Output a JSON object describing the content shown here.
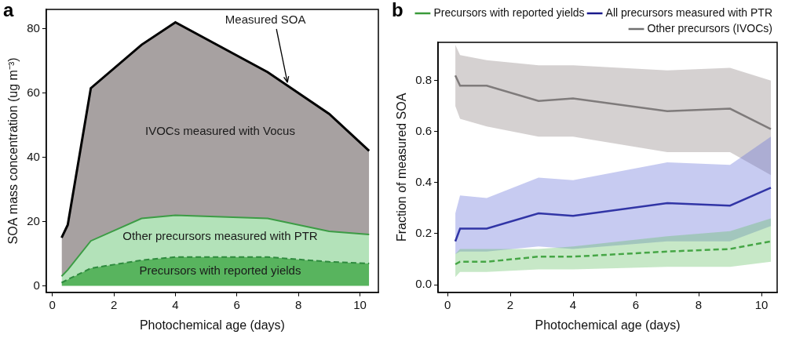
{
  "chart_data": [
    {
      "type": "area",
      "title": "a",
      "stacked": true,
      "grid": false,
      "x_label": "Photochemical age (days)",
      "y_label": "SOA mass concentration (ug m⁻³)",
      "annotations": [
        "Measured SOA"
      ],
      "x": [
        0.3,
        0.5,
        1.25,
        2.9,
        4.0,
        7.0,
        9.0,
        10.3
      ],
      "xlim": [
        -0.2,
        10.6
      ],
      "xticks": [
        0,
        2,
        4,
        6,
        8,
        10
      ],
      "ylim": [
        -2,
        86
      ],
      "yticks": [
        0,
        20,
        40,
        60,
        80
      ],
      "series": [
        {
          "name": "Precursors with reported yields",
          "color": "#2e8b3e",
          "line_style": "dashed",
          "values": [
            1,
            2,
            5.5,
            8,
            9,
            9,
            7.5,
            7
          ]
        },
        {
          "name": "Other precursors measured with PTR",
          "color": "#3c9c45",
          "line_style": "solid",
          "values": [
            2,
            3,
            8.5,
            13,
            13,
            12,
            9.5,
            9
          ]
        },
        {
          "name": "IVOCs measured with Vocus",
          "color": "#000000",
          "line_style": "solid",
          "values": [
            12,
            14,
            47.5,
            54,
            60,
            45.5,
            36.5,
            26
          ]
        }
      ]
    },
    {
      "type": "line",
      "title": "b",
      "grid": false,
      "legend": "top",
      "x_label": "Photochemical age (days)",
      "y_label": "Fraction of measured SOA",
      "x": [
        0.25,
        0.4,
        1.25,
        2.9,
        4.0,
        7.0,
        9.0,
        10.3
      ],
      "xlim": [
        -0.3,
        10.5
      ],
      "xticks": [
        0,
        2,
        4,
        6,
        8,
        10
      ],
      "ylim": [
        -0.03,
        0.95
      ],
      "yticks": [
        {
          "value": 0,
          "label": "0.0"
        },
        0.2,
        0.4,
        0.6,
        0.8
      ],
      "series": [
        {
          "name": "Precursors with reported yields",
          "color": "#3a9a3a",
          "line_style": "dashed",
          "values": [
            0.08,
            0.09,
            0.09,
            0.11,
            0.11,
            0.13,
            0.14,
            0.17
          ],
          "lower": [
            0.03,
            0.05,
            0.05,
            0.06,
            0.06,
            0.07,
            0.07,
            0.09
          ],
          "upper": [
            0.12,
            0.14,
            0.14,
            0.14,
            0.15,
            0.19,
            0.21,
            0.26
          ]
        },
        {
          "name": "All precursors measured with PTR",
          "color": "#1a1a8c",
          "line_style": "solid",
          "values": [
            0.17,
            0.22,
            0.22,
            0.28,
            0.27,
            0.32,
            0.31,
            0.38
          ],
          "lower": [
            0.12,
            0.13,
            0.13,
            0.15,
            0.14,
            0.17,
            0.17,
            0.23
          ],
          "upper": [
            0.28,
            0.35,
            0.34,
            0.42,
            0.41,
            0.48,
            0.47,
            0.58
          ]
        },
        {
          "name": "Other precursors (IVOCs)",
          "color": "#707070",
          "line_style": "solid",
          "values": [
            0.82,
            0.78,
            0.78,
            0.72,
            0.73,
            0.68,
            0.69,
            0.61
          ],
          "lower": [
            0.7,
            0.65,
            0.62,
            0.58,
            0.58,
            0.52,
            0.52,
            0.43
          ],
          "upper": [
            0.94,
            0.9,
            0.88,
            0.86,
            0.86,
            0.84,
            0.85,
            0.8
          ]
        }
      ]
    }
  ]
}
